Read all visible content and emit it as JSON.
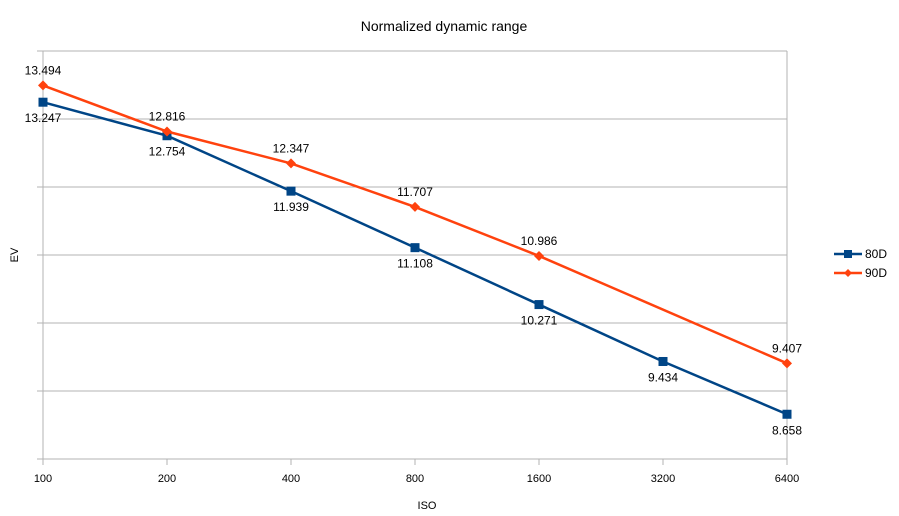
{
  "chart_data": {
    "type": "line",
    "title": "Normalized dynamic range",
    "xlabel": "ISO",
    "ylabel": "EV",
    "categories": [
      "100",
      "200",
      "400",
      "800",
      "1600",
      "3200",
      "6400"
    ],
    "ylim": [
      8,
      14
    ],
    "y_gridlines": [
      8,
      9,
      10,
      11,
      12,
      13,
      14
    ],
    "grid": true,
    "legend": "right",
    "series": [
      {
        "name": "80D",
        "color": "#004586",
        "marker": "square",
        "values": [
          13.247,
          12.754,
          11.939,
          11.108,
          10.271,
          9.434,
          8.658
        ],
        "labels": [
          "13.247",
          "12.754",
          "11.939",
          "11.108",
          "10.271",
          "9.434",
          "8.658"
        ],
        "label_position": "below"
      },
      {
        "name": "90D",
        "color": "#ff420e",
        "marker": "diamond",
        "values": [
          13.494,
          12.816,
          12.347,
          11.707,
          10.986,
          null,
          9.407
        ],
        "labels": [
          "13.494",
          "12.816",
          "12.347",
          "11.707",
          "10.986",
          "",
          "9.407"
        ],
        "label_position": "above"
      }
    ]
  }
}
